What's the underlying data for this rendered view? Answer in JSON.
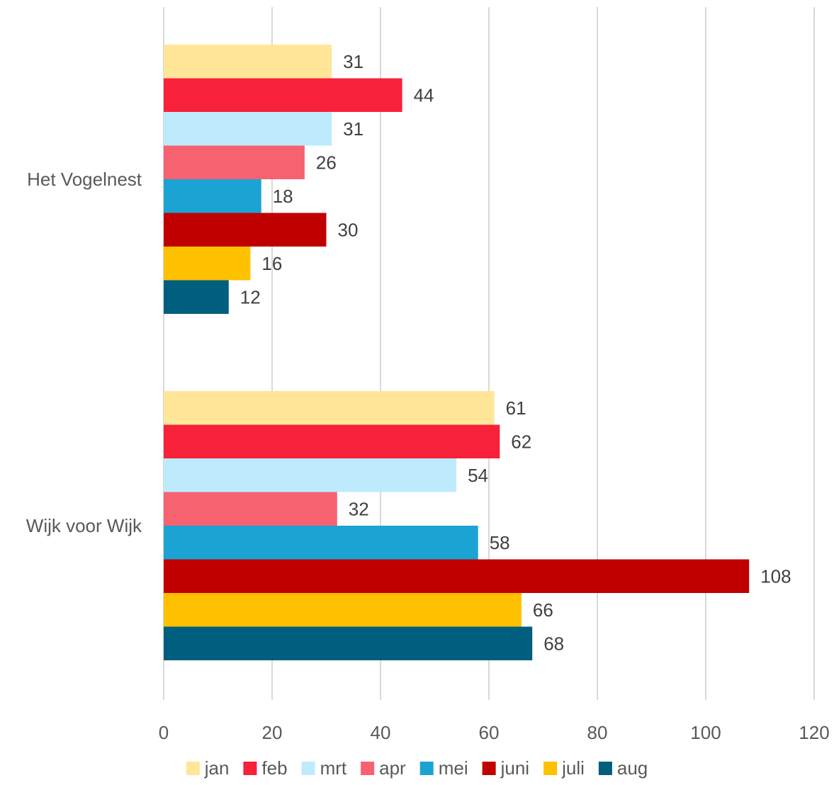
{
  "chart_data": {
    "type": "bar",
    "orientation": "horizontal",
    "title": "",
    "xlabel": "",
    "ylabel": "",
    "categories": [
      "Het Vogelnest",
      "Wijk voor Wijk"
    ],
    "xlim": [
      0,
      120
    ],
    "x_ticks": [
      0,
      20,
      40,
      60,
      80,
      100,
      120
    ],
    "grid": "vertical",
    "legend_position": "bottom",
    "series": [
      {
        "name": "jan",
        "color": "#FFE699",
        "values": [
          31,
          61
        ]
      },
      {
        "name": "feb",
        "color": "#F7213A",
        "values": [
          44,
          62
        ]
      },
      {
        "name": "mrt",
        "color": "#BDEBFB",
        "values": [
          31,
          54
        ]
      },
      {
        "name": "apr",
        "color": "#F76271",
        "values": [
          26,
          32
        ]
      },
      {
        "name": "mei",
        "color": "#1BA3D4",
        "values": [
          18,
          58
        ]
      },
      {
        "name": "juni",
        "color": "#C00000",
        "values": [
          30,
          108
        ]
      },
      {
        "name": "juli",
        "color": "#FFC000",
        "values": [
          16,
          66
        ]
      },
      {
        "name": "aug",
        "color": "#005E7E",
        "values": [
          12,
          68
        ]
      }
    ]
  }
}
